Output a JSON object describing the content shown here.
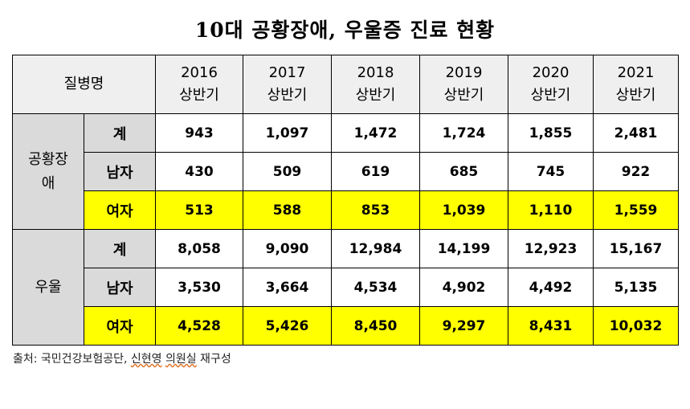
{
  "title": "10대 공황장애, 우울증 진료 현황",
  "header": {
    "disease": "질병명",
    "years": [
      "2016",
      "2017",
      "2018",
      "2019",
      "2020",
      "2021"
    ],
    "period": "상반기"
  },
  "groups": [
    {
      "name": "공황장애",
      "rows": [
        {
          "label": "계",
          "values": [
            "943",
            "1,097",
            "1,472",
            "1,724",
            "1,855",
            "2,481"
          ],
          "highlight": false
        },
        {
          "label": "남자",
          "values": [
            "430",
            "509",
            "619",
            "685",
            "745",
            "922"
          ],
          "highlight": false
        },
        {
          "label": "여자",
          "values": [
            "513",
            "588",
            "853",
            "1,039",
            "1,110",
            "1,559"
          ],
          "highlight": true
        }
      ]
    },
    {
      "name": "우울",
      "rows": [
        {
          "label": "계",
          "values": [
            "8,058",
            "9,090",
            "12,984",
            "14,199",
            "12,923",
            "15,167"
          ],
          "highlight": false
        },
        {
          "label": "남자",
          "values": [
            "3,530",
            "3,664",
            "4,534",
            "4,902",
            "4,492",
            "5,135"
          ],
          "highlight": false
        },
        {
          "label": "여자",
          "values": [
            "4,528",
            "5,426",
            "8,450",
            "9,297",
            "8,431",
            "10,032"
          ],
          "highlight": true
        }
      ]
    }
  ],
  "source": {
    "prefix": "출처: 국민건강보험공단, ",
    "a": "신현영",
    "b": " ",
    "c": "의원실",
    "d": " 재구성"
  },
  "colors": {
    "highlight": "#ffff00",
    "header_bg": "#efefef",
    "label_bg": "#dadada"
  }
}
